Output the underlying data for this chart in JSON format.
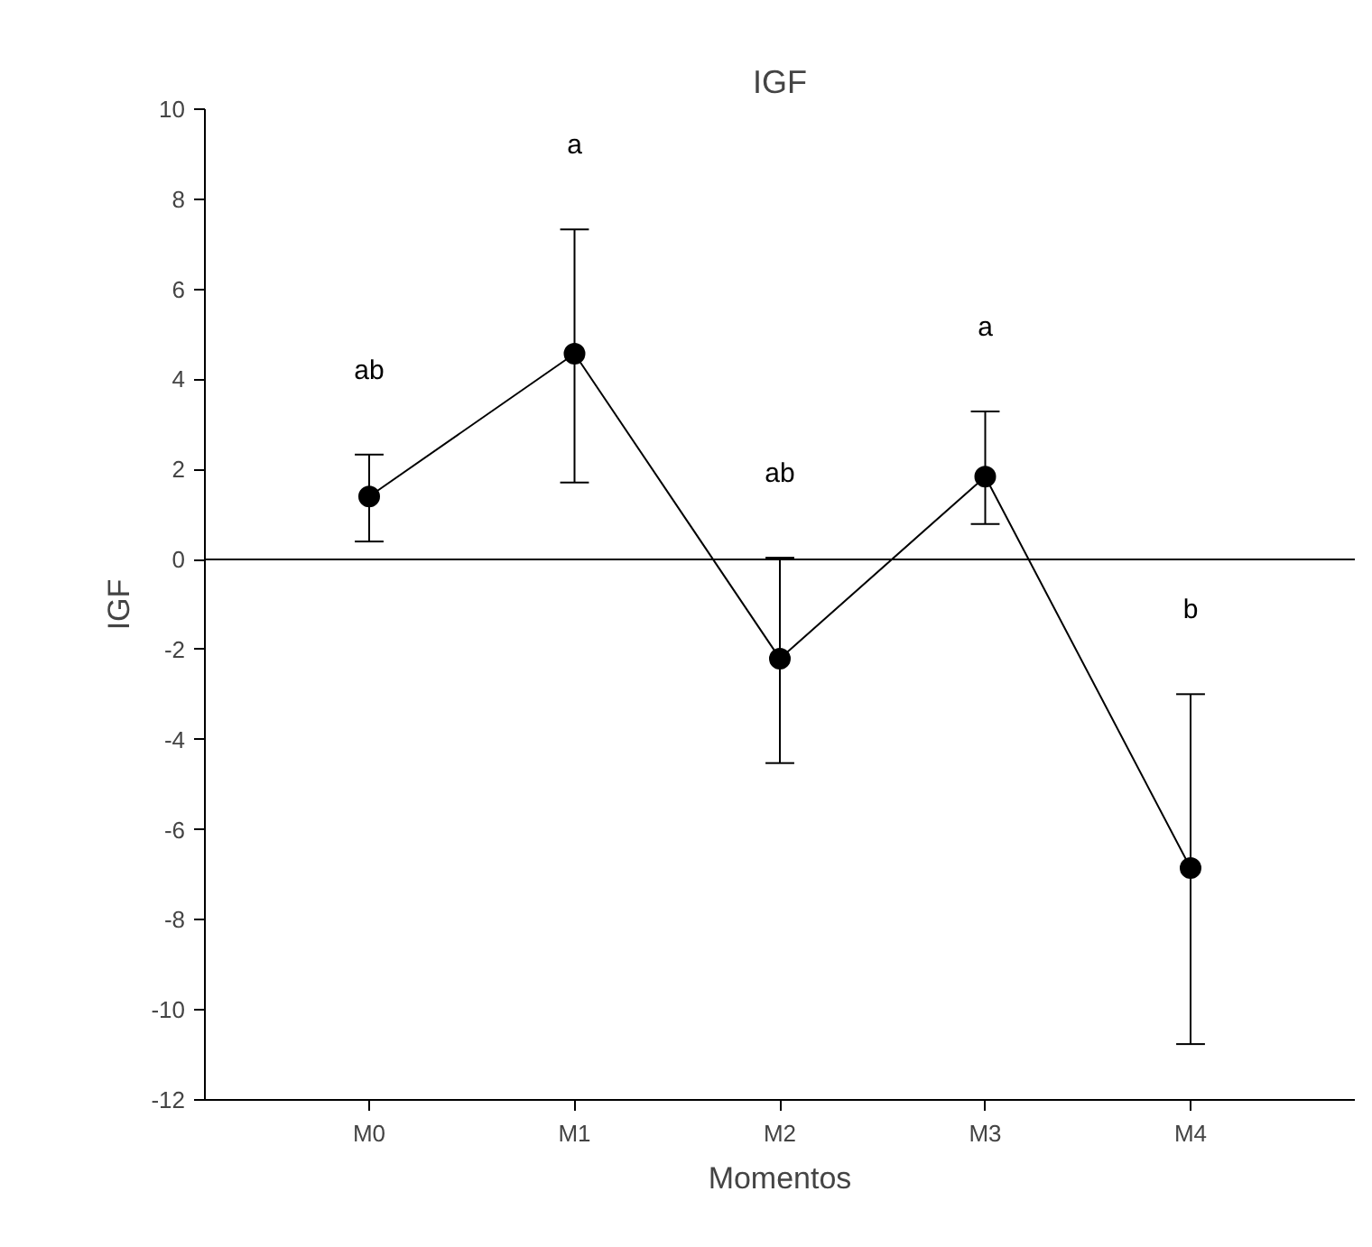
{
  "chart_data": {
    "type": "line",
    "title": "IGF",
    "xlabel": "Momentos",
    "ylabel": "IGF",
    "categories": [
      "M0",
      "M1",
      "M2",
      "M3",
      "M4"
    ],
    "series": [
      {
        "color": "#000000",
        "values": [
          1.4,
          4.57,
          -2.2,
          1.84,
          -6.85
        ],
        "errors": [
          [
            0.4,
            2.33
          ],
          [
            1.71,
            7.33
          ],
          [
            -4.52,
            0.04
          ],
          [
            0.79,
            3.29
          ],
          [
            -10.76,
            -2.99
          ]
        ]
      }
    ],
    "ylim": [
      -12,
      10
    ],
    "yticks": [
      -12,
      -10,
      -8,
      -6,
      -4,
      -2,
      0,
      2,
      4,
      6,
      8,
      10
    ],
    "ref_lines": [
      {
        "axis": "y",
        "value": 0,
        "color": "#000000"
      }
    ],
    "annotations": [
      "ab",
      "a",
      "ab",
      "a",
      "b"
    ],
    "marker": "circle",
    "line_style": "solid",
    "grid": false
  }
}
